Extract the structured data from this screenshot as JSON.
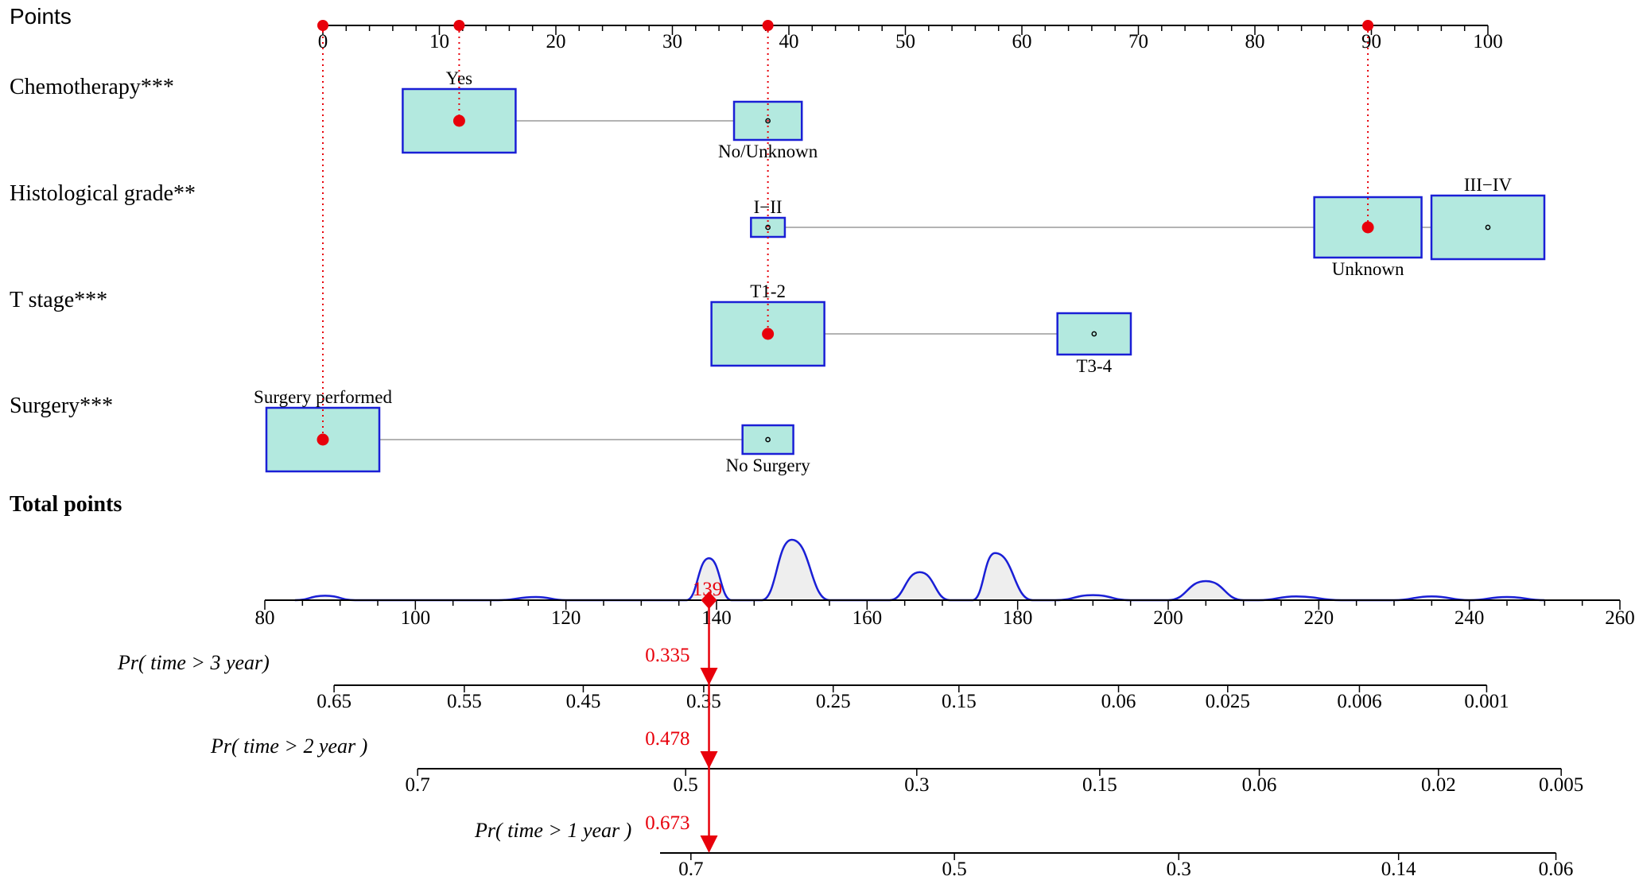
{
  "chart_data": {
    "type": "nomogram",
    "points_axis": {
      "label": "Points",
      "min": 0,
      "max": 100,
      "ticks": [
        0,
        10,
        20,
        30,
        40,
        50,
        60,
        70,
        80,
        90,
        100
      ],
      "selected": [
        0,
        11.7,
        38.2,
        89.7
      ]
    },
    "variables": [
      {
        "name": "Chemotherapy***",
        "levels": [
          {
            "label": "Yes",
            "points": 11.7,
            "label_side": "above",
            "weight": 1.0,
            "selected": true
          },
          {
            "label": "No/Unknown",
            "points": 38.2,
            "label_side": "below",
            "weight": 0.6,
            "selected": false
          }
        ]
      },
      {
        "name": "Histological grade**",
        "levels": [
          {
            "label": "I−II",
            "points": 38.2,
            "label_side": "above",
            "weight": 0.3,
            "selected": false
          },
          {
            "label": "Unknown",
            "points": 89.7,
            "label_side": "below",
            "weight": 0.95,
            "selected": true
          },
          {
            "label": "III−IV",
            "points": 100,
            "label_side": "above",
            "weight": 1.0,
            "selected": false
          }
        ]
      },
      {
        "name": "T stage***",
        "levels": [
          {
            "label": "T1-2",
            "points": 38.2,
            "label_side": "above",
            "weight": 1.0,
            "selected": true
          },
          {
            "label": "T3-4",
            "points": 66.2,
            "label_side": "below",
            "weight": 0.65,
            "selected": false
          }
        ]
      },
      {
        "name": "Surgery***",
        "levels": [
          {
            "label": "Surgery performed",
            "points": 0,
            "label_side": "above",
            "weight": 1.0,
            "selected": true
          },
          {
            "label": "No Surgery",
            "points": 38.2,
            "label_side": "below",
            "weight": 0.45,
            "selected": false
          }
        ]
      }
    ],
    "total_points": {
      "label": "Total points",
      "min": 80,
      "max": 260,
      "ticks": [
        80,
        100,
        120,
        140,
        160,
        180,
        200,
        220,
        240,
        260
      ],
      "selected": 139,
      "selected_label": "139",
      "density_x": [
        84,
        88,
        92,
        111,
        116,
        120,
        136,
        139,
        142,
        146,
        150,
        155,
        163,
        167,
        171,
        174,
        177,
        182,
        185,
        190,
        195,
        200,
        205,
        210,
        212,
        217,
        223,
        230,
        235,
        240,
        245,
        250
      ],
      "density_y": [
        0,
        0.07,
        0,
        0,
        0.05,
        0,
        0,
        0.66,
        0,
        0,
        0.95,
        0,
        0,
        0.44,
        0,
        0,
        0.74,
        0,
        0,
        0.08,
        0,
        0,
        0.3,
        0,
        0,
        0.06,
        0,
        0,
        0.06,
        0,
        0.05,
        0
      ]
    },
    "probability_axes": [
      {
        "label": "Pr( time > 3  year)",
        "tick_labels": [
          "0.65",
          "0.55",
          "0.45",
          "0.35",
          "0.25",
          "0.15",
          "0.06",
          "0.025",
          "0.006",
          "0.001"
        ],
        "tick_total_points": [
          89.2,
          106.5,
          122.3,
          138.3,
          155.5,
          172.2,
          193.4,
          207.9,
          225.4,
          242.3
        ],
        "selected_value": "0.335",
        "axis_range": [
          89.2,
          242.3
        ]
      },
      {
        "label": "Pr( time > 2 year )",
        "tick_labels": [
          "0.7",
          "0.5",
          "0.3",
          "0.15",
          "0.06",
          "0.02",
          "0.005"
        ],
        "tick_total_points": [
          100.3,
          135.9,
          166.6,
          190.9,
          212.1,
          235.9,
          252.2
        ],
        "selected_value": "0.478",
        "axis_range": [
          100.3,
          252.2
        ]
      },
      {
        "label": "Pr( time > 1 year )",
        "tick_labels": [
          "0.7",
          "0.5",
          "0.3",
          "0.14",
          "0.06"
        ],
        "tick_total_points": [
          136.6,
          171.6,
          201.4,
          230.6,
          251.5
        ],
        "selected_value": "0.673",
        "axis_range": [
          132.5,
          251.5
        ]
      }
    ],
    "colors": {
      "box_fill": "#b3e9df",
      "box_stroke": "#1a1fd6",
      "highlight": "#e8000b",
      "density_fill": "#eeeeee",
      "density_stroke": "#1a1fd6",
      "connector": "#b3b3b3"
    }
  }
}
